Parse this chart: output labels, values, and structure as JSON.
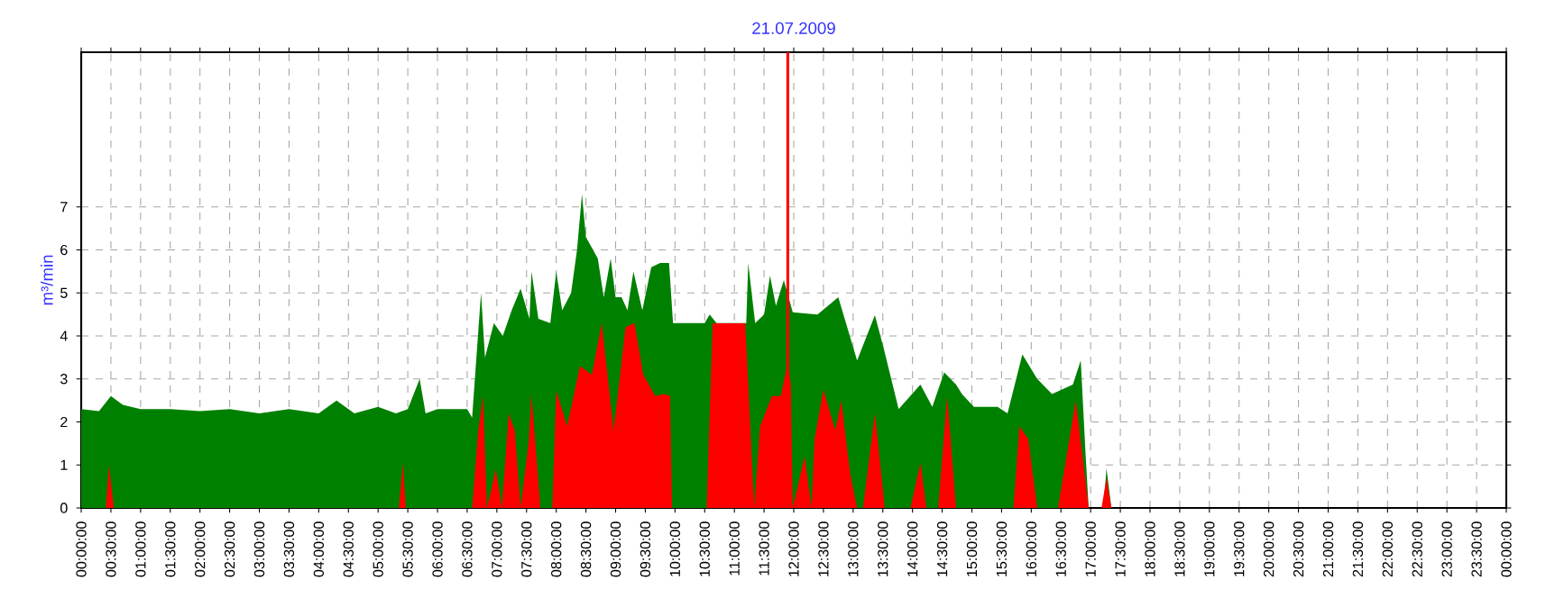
{
  "chart_data": {
    "type": "area",
    "title": "21.07.2009",
    "ylabel": "m³/min",
    "xlim": [
      "2009-07-21T00:00",
      "2009-07-22T00:00"
    ],
    "ylim": [
      0,
      10.6
    ],
    "xticks": [
      {
        "value": "2009-07-21T00:00",
        "label": "00:00:00"
      },
      {
        "value": "2009-07-21T00:30",
        "label": "00:30:00"
      },
      {
        "value": "2009-07-21T01:00",
        "label": "01:00:00"
      },
      {
        "value": "2009-07-21T01:30",
        "label": "01:30:00"
      },
      {
        "value": "2009-07-21T02:00",
        "label": "02:00:00"
      },
      {
        "value": "2009-07-21T02:30",
        "label": "02:30:00"
      },
      {
        "value": "2009-07-21T03:00",
        "label": "03:00:00"
      },
      {
        "value": "2009-07-21T03:30",
        "label": "03:30:00"
      },
      {
        "value": "2009-07-21T04:00",
        "label": "04:00:00"
      },
      {
        "value": "2009-07-21T04:30",
        "label": "04:30:00"
      },
      {
        "value": "2009-07-21T05:00",
        "label": "05:00:00"
      },
      {
        "value": "2009-07-21T05:30",
        "label": "05:30:00"
      },
      {
        "value": "2009-07-21T06:00",
        "label": "06:00:00"
      },
      {
        "value": "2009-07-21T06:30",
        "label": "06:30:00"
      },
      {
        "value": "2009-07-21T07:00",
        "label": "07:00:00"
      },
      {
        "value": "2009-07-21T07:30",
        "label": "07:30:00"
      },
      {
        "value": "2009-07-21T08:00",
        "label": "08:00:00"
      },
      {
        "value": "2009-07-21T08:30",
        "label": "08:30:00"
      },
      {
        "value": "2009-07-21T09:00",
        "label": "09:00:00"
      },
      {
        "value": "2009-07-21T09:30",
        "label": "09:30:00"
      },
      {
        "value": "2009-07-21T10:00",
        "label": "10:00:00"
      },
      {
        "value": "2009-07-21T10:30",
        "label": "10:30:00"
      },
      {
        "value": "2009-07-21T11:00",
        "label": "11:00:00"
      },
      {
        "value": "2009-07-21T11:30",
        "label": "11:30:00"
      },
      {
        "value": "2009-07-21T12:00",
        "label": "12:00:00"
      },
      {
        "value": "2009-07-21T12:30",
        "label": "12:30:00"
      },
      {
        "value": "2009-07-21T13:00",
        "label": "13:00:00"
      },
      {
        "value": "2009-07-21T13:30",
        "label": "13:30:00"
      },
      {
        "value": "2009-07-21T14:00",
        "label": "14:00:00"
      },
      {
        "value": "2009-07-21T14:30",
        "label": "14:30:00"
      },
      {
        "value": "2009-07-21T15:00",
        "label": "15:00:00"
      },
      {
        "value": "2009-07-21T15:30",
        "label": "15:30:00"
      },
      {
        "value": "2009-07-21T16:00",
        "label": "16:00:00"
      },
      {
        "value": "2009-07-21T16:30",
        "label": "16:30:00"
      },
      {
        "value": "2009-07-21T17:00",
        "label": "17:00:00"
      },
      {
        "value": "2009-07-21T17:30",
        "label": "17:30:00"
      },
      {
        "value": "2009-07-21T18:00",
        "label": "18:00:00"
      },
      {
        "value": "2009-07-21T18:30",
        "label": "18:30:00"
      },
      {
        "value": "2009-07-21T19:00",
        "label": "19:00:00"
      },
      {
        "value": "2009-07-21T19:30",
        "label": "19:30:00"
      },
      {
        "value": "2009-07-21T20:00",
        "label": "20:00:00"
      },
      {
        "value": "2009-07-21T20:30",
        "label": "20:30:00"
      },
      {
        "value": "2009-07-21T21:00",
        "label": "21:00:00"
      },
      {
        "value": "2009-07-21T21:30",
        "label": "21:30:00"
      },
      {
        "value": "2009-07-21T22:00",
        "label": "22:00:00"
      },
      {
        "value": "2009-07-21T22:30",
        "label": "22:30:00"
      },
      {
        "value": "2009-07-21T23:00",
        "label": "23:00:00"
      },
      {
        "value": "2009-07-21T23:30",
        "label": "23:30:00"
      },
      {
        "value": "2009-07-22T00:00",
        "label": "00:00:00"
      }
    ],
    "yticks": [
      0,
      1,
      2,
      3,
      4,
      5,
      6,
      7
    ],
    "grid": true,
    "ref_lines": [
      {
        "axis": "x",
        "value": "2009-07-21T11:54",
        "color": "#ff0000"
      }
    ],
    "series": [
      {
        "color": "#008000",
        "x": [
          "2009-07-21T00:00",
          "2009-07-21T00:18",
          "2009-07-21T00:30",
          "2009-07-21T00:42",
          "2009-07-21T01:00",
          "2009-07-21T01:30",
          "2009-07-21T02:00",
          "2009-07-21T02:30",
          "2009-07-21T03:00",
          "2009-07-21T03:30",
          "2009-07-21T04:00",
          "2009-07-21T04:18",
          "2009-07-21T04:36",
          "2009-07-21T05:00",
          "2009-07-21T05:18",
          "2009-07-21T05:30",
          "2009-07-21T05:42",
          "2009-07-21T05:48",
          "2009-07-21T06:00",
          "2009-07-21T06:30",
          "2009-07-21T06:35",
          "2009-07-21T06:44",
          "2009-07-21T06:48",
          "2009-07-21T06:57",
          "2009-07-21T07:06",
          "2009-07-21T07:15",
          "2009-07-21T07:24",
          "2009-07-21T07:33",
          "2009-07-21T07:35",
          "2009-07-21T07:42",
          "2009-07-21T07:54",
          "2009-07-21T08:00",
          "2009-07-21T08:06",
          "2009-07-21T08:15",
          "2009-07-21T08:21",
          "2009-07-21T08:26",
          "2009-07-21T08:30",
          "2009-07-21T08:42",
          "2009-07-21T08:48",
          "2009-07-21T08:55",
          "2009-07-21T09:00",
          "2009-07-21T09:06",
          "2009-07-21T09:12",
          "2009-07-21T09:18",
          "2009-07-21T09:27",
          "2009-07-21T09:36",
          "2009-07-21T09:45",
          "2009-07-21T09:54",
          "2009-07-21T09:58",
          "2009-07-21T10:30",
          "2009-07-21T10:35",
          "2009-07-21T10:42",
          "2009-07-21T11:12",
          "2009-07-21T11:14",
          "2009-07-21T11:21",
          "2009-07-21T11:30",
          "2009-07-21T11:36",
          "2009-07-21T11:42",
          "2009-07-21T11:50",
          "2009-07-21T11:59",
          "2009-07-21T12:24",
          "2009-07-21T12:45",
          "2009-07-21T13:04",
          "2009-07-21T13:22",
          "2009-07-21T13:31",
          "2009-07-21T13:46",
          "2009-07-21T14:08",
          "2009-07-21T14:20",
          "2009-07-21T14:32",
          "2009-07-21T14:44",
          "2009-07-21T14:50",
          "2009-07-21T15:02",
          "2009-07-21T15:26",
          "2009-07-21T15:36",
          "2009-07-21T15:51",
          "2009-07-21T16:06",
          "2009-07-21T16:21",
          "2009-07-21T16:42",
          "2009-07-21T16:50",
          "2009-07-21T16:55",
          "2009-07-21T16:58",
          "2009-07-21T17:13",
          "2009-07-21T17:16",
          "2009-07-21T17:21",
          "2009-07-22T00:00"
        ],
        "values": [
          2.3,
          2.25,
          2.6,
          2.4,
          2.3,
          2.3,
          2.25,
          2.3,
          2.2,
          2.3,
          2.2,
          2.5,
          2.2,
          2.35,
          2.2,
          2.3,
          3.0,
          2.2,
          2.3,
          2.3,
          2.1,
          5.0,
          3.5,
          4.3,
          4.0,
          4.6,
          5.1,
          4.4,
          5.5,
          4.4,
          4.3,
          5.5,
          4.6,
          5.0,
          6.0,
          7.3,
          6.3,
          5.8,
          4.9,
          5.8,
          4.9,
          4.9,
          4.6,
          5.5,
          4.6,
          5.6,
          5.7,
          5.7,
          4.3,
          4.3,
          4.5,
          4.3,
          4.3,
          5.7,
          4.3,
          4.5,
          5.4,
          4.7,
          5.3,
          4.55,
          4.5,
          4.9,
          3.43,
          4.48,
          3.7,
          2.3,
          2.87,
          2.35,
          3.15,
          2.87,
          2.65,
          2.35,
          2.35,
          2.2,
          3.57,
          3.0,
          2.65,
          2.87,
          3.43,
          1.2,
          0,
          0,
          0.92,
          0,
          0
        ]
      },
      {
        "color": "#ff0000",
        "x": [
          "2009-07-21T00:00",
          "2009-07-21T00:25",
          "2009-07-21T00:28",
          "2009-07-21T00:33",
          "2009-07-21T05:21",
          "2009-07-21T05:25",
          "2009-07-21T05:28",
          "2009-07-21T06:35",
          "2009-07-21T06:41",
          "2009-07-21T06:46",
          "2009-07-21T06:50",
          "2009-07-21T06:59",
          "2009-07-21T07:05",
          "2009-07-21T07:12",
          "2009-07-21T07:18",
          "2009-07-21T07:24",
          "2009-07-21T07:32",
          "2009-07-21T07:35",
          "2009-07-21T07:44",
          "2009-07-21T07:56",
          "2009-07-21T08:00",
          "2009-07-21T08:11",
          "2009-07-21T08:24",
          "2009-07-21T08:36",
          "2009-07-21T08:46",
          "2009-07-21T08:58",
          "2009-07-21T09:10",
          "2009-07-21T09:19",
          "2009-07-21T09:28",
          "2009-07-21T09:40",
          "2009-07-21T09:49",
          "2009-07-21T09:55",
          "2009-07-21T09:57",
          "2009-07-21T10:32",
          "2009-07-21T10:38",
          "2009-07-21T11:11",
          "2009-07-21T11:20",
          "2009-07-21T11:26",
          "2009-07-21T11:38",
          "2009-07-21T11:47",
          "2009-07-21T11:54",
          "2009-07-21T11:57",
          "2009-07-21T11:59",
          "2009-07-21T12:11",
          "2009-07-21T12:18",
          "2009-07-21T12:21",
          "2009-07-21T12:30",
          "2009-07-21T12:42",
          "2009-07-21T12:48",
          "2009-07-21T12:57",
          "2009-07-21T13:04",
          "2009-07-21T13:10",
          "2009-07-21T13:22",
          "2009-07-21T13:32",
          "2009-07-21T13:58",
          "2009-07-21T14:08",
          "2009-07-21T14:14",
          "2009-07-21T14:26",
          "2009-07-21T14:35",
          "2009-07-21T14:44",
          "2009-07-21T15:42",
          "2009-07-21T15:48",
          "2009-07-21T15:57",
          "2009-07-21T16:06",
          "2009-07-21T16:27",
          "2009-07-21T16:45",
          "2009-07-21T16:58",
          "2009-07-21T17:11",
          "2009-07-21T17:16",
          "2009-07-21T17:21",
          "2009-07-22T00:00"
        ],
        "values": [
          0,
          0,
          1.0,
          0,
          0,
          1.05,
          0,
          0,
          1.76,
          2.6,
          0,
          0.9,
          0,
          2.2,
          1.8,
          0,
          1.5,
          2.65,
          0,
          0,
          2.73,
          1.9,
          3.3,
          3.1,
          4.3,
          1.8,
          4.2,
          4.3,
          3.1,
          2.6,
          2.65,
          2.6,
          0,
          0,
          4.3,
          4.3,
          0,
          1.9,
          2.6,
          2.6,
          3.4,
          2.87,
          0,
          1.2,
          0,
          1.6,
          2.75,
          1.8,
          2.5,
          0.8,
          0,
          0,
          2.2,
          0,
          0,
          1.05,
          0,
          0,
          2.6,
          0,
          0,
          1.9,
          1.6,
          0,
          0,
          2.5,
          0,
          0,
          0.7,
          0,
          0
        ]
      }
    ]
  }
}
